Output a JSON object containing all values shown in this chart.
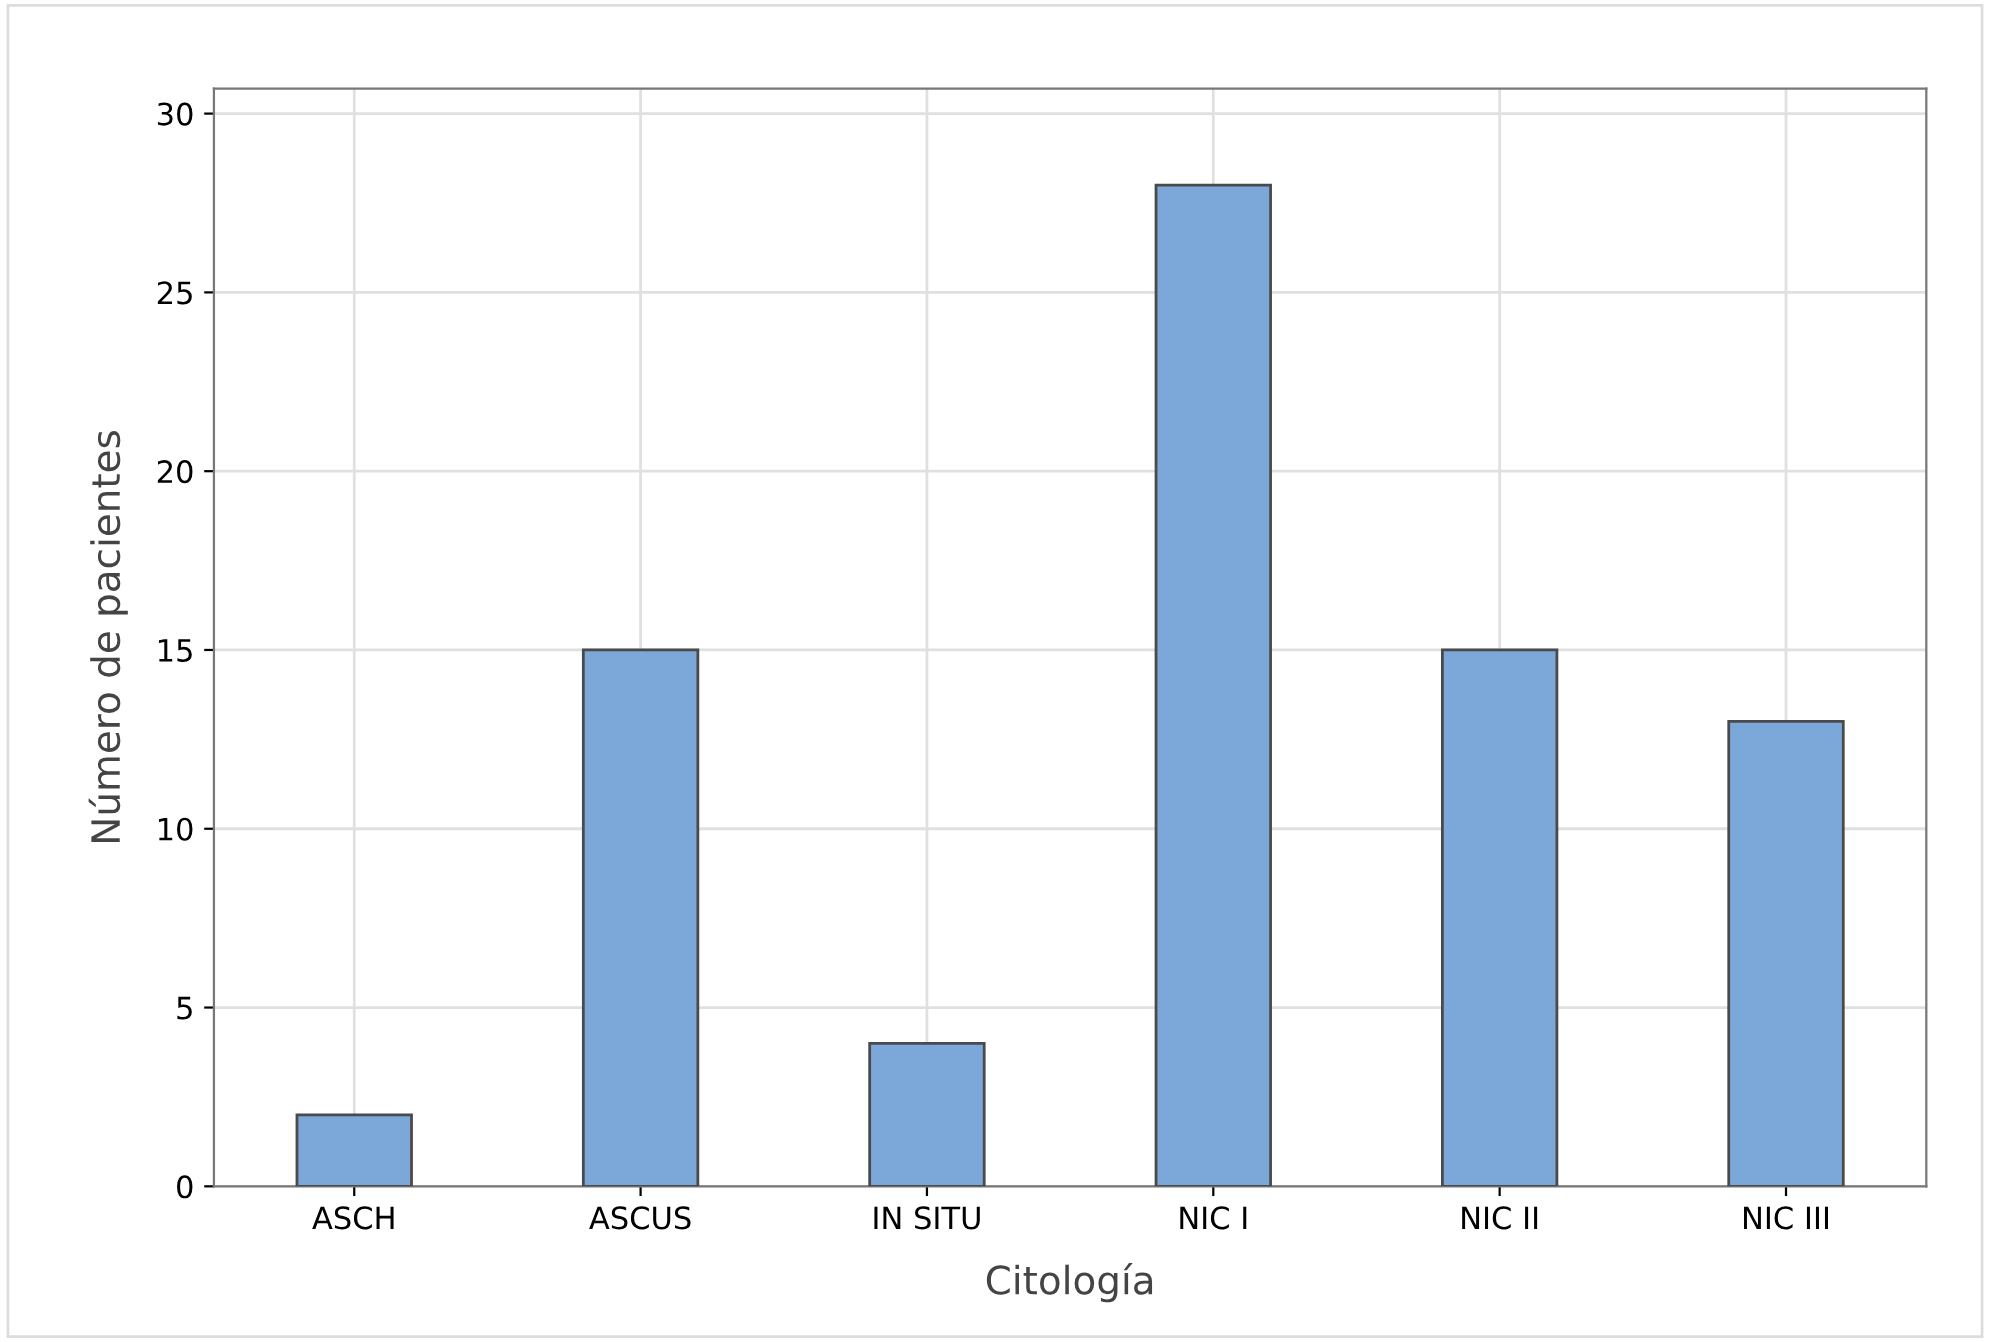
{
  "chart_data": {
    "type": "bar",
    "xlabel": "Citología",
    "ylabel": "Número de pacientes",
    "categories": [
      "ASCH",
      "ASCUS",
      "IN SITU",
      "NIC I",
      "NIC II",
      "NIC III"
    ],
    "values": [
      2,
      15,
      4,
      28,
      15,
      13
    ],
    "color": "#7ba7d9",
    "ylim": [
      0,
      30.7
    ],
    "yticks": [
      0,
      5,
      10,
      15,
      20,
      25,
      30
    ],
    "grid": true
  }
}
